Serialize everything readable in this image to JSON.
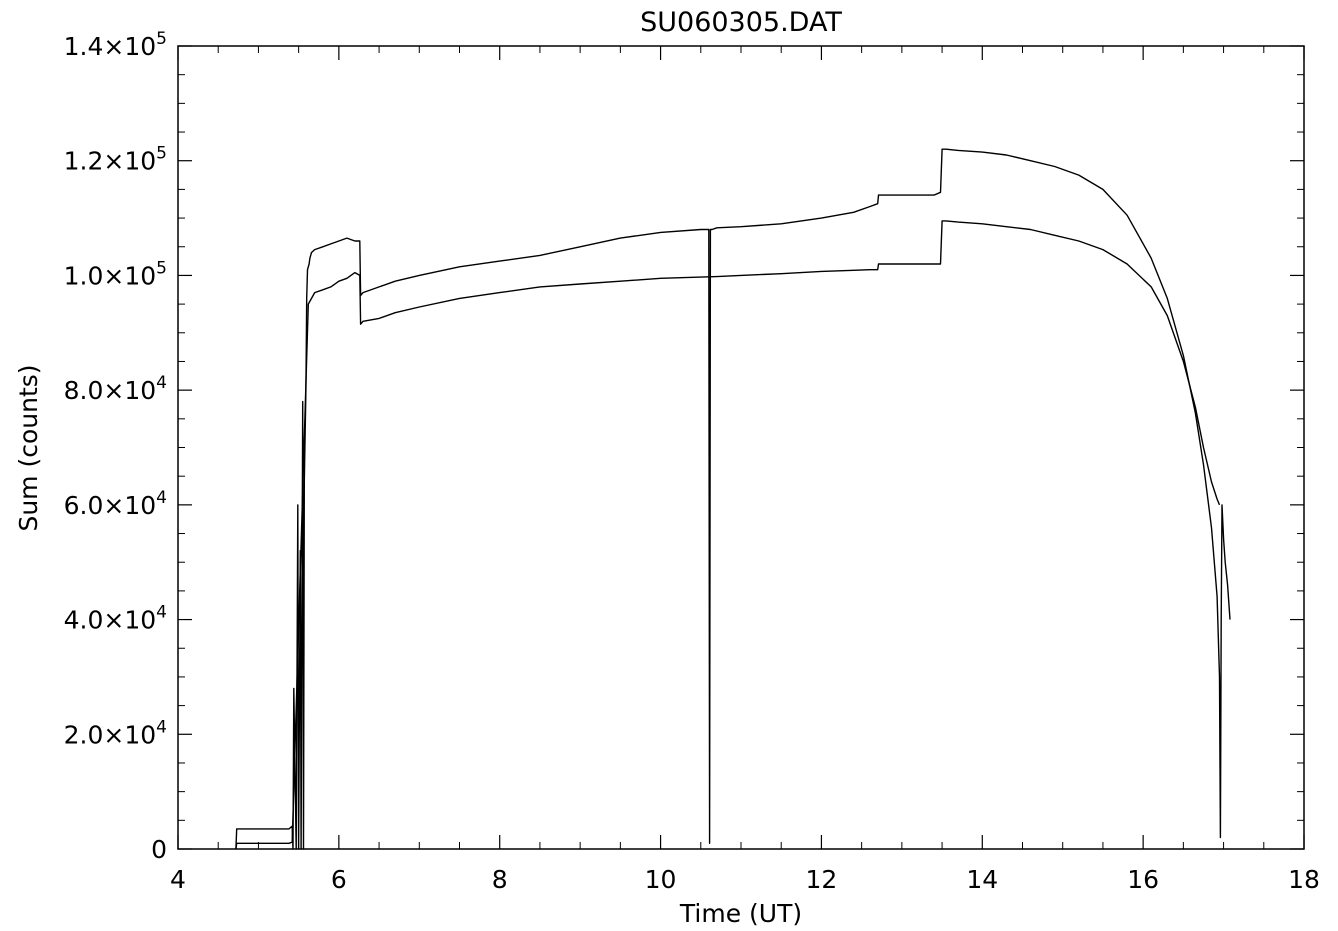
{
  "chart_data": {
    "type": "line",
    "title": "SU060305.DAT",
    "xlabel": "Time (UT)",
    "ylabel": "Sum (counts)",
    "xlim": [
      4,
      18
    ],
    "ylim": [
      0,
      140000
    ],
    "x_ticks": [
      4,
      6,
      8,
      10,
      12,
      14,
      16,
      18
    ],
    "x_tick_labels": [
      "4",
      "6",
      "8",
      "10",
      "12",
      "14",
      "16",
      "18"
    ],
    "y_ticks": [
      0,
      20000,
      40000,
      60000,
      80000,
      100000,
      120000,
      140000
    ],
    "y_tick_labels": [
      {
        "mantissa": "0",
        "exp": ""
      },
      {
        "mantissa": "2.0×10",
        "exp": "4"
      },
      {
        "mantissa": "4.0×10",
        "exp": "4"
      },
      {
        "mantissa": "6.0×10",
        "exp": "4"
      },
      {
        "mantissa": "8.0×10",
        "exp": "4"
      },
      {
        "mantissa": "1.0×10",
        "exp": "5"
      },
      {
        "mantissa": "1.2×10",
        "exp": "5"
      },
      {
        "mantissa": "1.4×10",
        "exp": "5"
      }
    ],
    "grid": false,
    "line_color": "#000000",
    "series": [
      {
        "x": [
          4.72,
          4.73,
          5.38,
          5.42,
          5.43,
          5.44,
          5.47,
          5.49,
          5.5,
          5.52,
          5.53,
          5.55,
          5.56,
          5.57,
          5.59,
          5.6,
          5.61,
          5.63,
          5.64,
          5.66,
          5.7,
          5.8,
          5.9,
          6.0,
          6.1,
          6.2,
          6.26,
          6.27,
          6.3,
          6.5,
          6.7,
          7.0,
          7.5,
          8.0,
          8.5,
          9.0,
          9.5,
          10.0,
          10.5,
          10.6,
          10.61,
          10.62,
          10.63,
          10.64,
          10.7,
          11.0,
          11.5,
          12.0,
          12.4,
          12.6,
          12.7,
          12.71,
          12.8,
          13.0,
          13.2,
          13.4,
          13.48,
          13.5,
          13.55,
          13.7,
          14.0,
          14.3,
          14.6,
          14.9,
          15.2,
          15.5,
          15.8,
          16.1,
          16.3,
          16.5,
          16.65,
          16.75,
          16.85,
          16.92,
          16.95,
          16.96,
          16.97,
          16.98,
          16.99,
          17.0,
          17.02,
          17.05,
          17.08
        ],
        "y": [
          0,
          3500,
          3500,
          4000,
          0,
          28000,
          0,
          60000,
          0,
          52000,
          0,
          78000,
          0,
          64000,
          80000,
          96000,
          101000,
          102000,
          103000,
          104000,
          104500,
          105000,
          105500,
          106000,
          106500,
          106000,
          106000,
          96500,
          97000,
          98000,
          99000,
          100000,
          101500,
          102500,
          103500,
          105000,
          106500,
          107500,
          108000,
          108000,
          1000,
          108000,
          108000,
          108000,
          108300,
          108500,
          109000,
          110000,
          111000,
          112000,
          112500,
          114000,
          114000,
          114000,
          114000,
          114000,
          114500,
          122000,
          122000,
          121800,
          121500,
          121000,
          120000,
          119000,
          117500,
          115000,
          110500,
          103000,
          96000,
          86000,
          76000,
          67000,
          56000,
          44000,
          30000,
          2000,
          40000,
          60000,
          57000,
          54000,
          50000,
          46000,
          40000
        ]
      },
      {
        "x": [
          4.72,
          4.73,
          5.38,
          5.42,
          5.62,
          5.66,
          5.7,
          5.8,
          5.9,
          6.0,
          6.1,
          6.2,
          6.26,
          6.27,
          6.3,
          6.5,
          6.7,
          7.0,
          7.5,
          8.0,
          8.5,
          9.0,
          9.5,
          10.0,
          10.5,
          10.7,
          11.0,
          11.5,
          12.0,
          12.4,
          12.6,
          12.7,
          12.71,
          12.8,
          13.0,
          13.2,
          13.4,
          13.48,
          13.5,
          13.55,
          13.7,
          14.0,
          14.3,
          14.6,
          14.9,
          15.2,
          15.5,
          15.8,
          16.1,
          16.3,
          16.5,
          16.65,
          16.75,
          16.85,
          16.92,
          16.95
        ],
        "y": [
          0,
          1000,
          1000,
          1200,
          95000,
          96000,
          97000,
          97500,
          98000,
          99000,
          99500,
          100500,
          100000,
          91500,
          92000,
          92500,
          93500,
          94500,
          96000,
          97000,
          98000,
          98500,
          99000,
          99500,
          99700,
          99800,
          100000,
          100300,
          100700,
          100900,
          101000,
          101000,
          102000,
          102000,
          102000,
          102000,
          102000,
          102000,
          109500,
          109500,
          109300,
          109000,
          108500,
          108000,
          107000,
          106000,
          104500,
          102000,
          98000,
          93000,
          85000,
          77000,
          70000,
          64000,
          61000,
          60000
        ]
      }
    ]
  }
}
